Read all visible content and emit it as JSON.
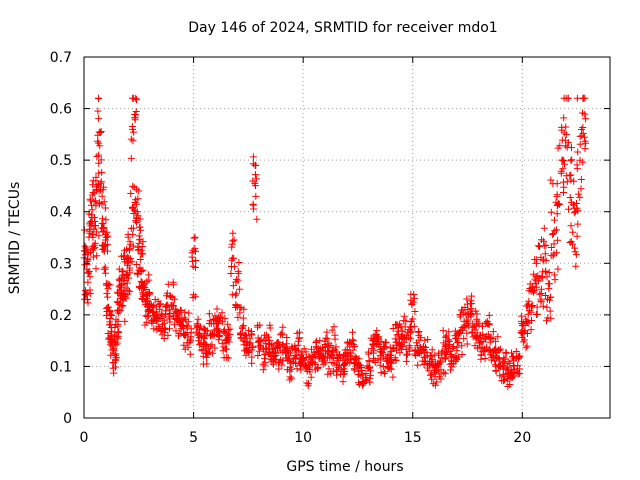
{
  "chart_data": {
    "type": "scatter",
    "title": "Day 146 of 2024, SRMTID for receiver mdo1",
    "xlabel": "GPS time / hours",
    "ylabel": "SRMTID / TECUs",
    "xlim": [
      0,
      24
    ],
    "ylim": [
      0,
      0.7
    ],
    "xticks": [
      0,
      5,
      10,
      15,
      20
    ],
    "yticks": [
      0,
      0.1,
      0.2,
      0.3,
      0.4,
      0.5,
      0.6,
      0.7
    ],
    "ytick_labels": [
      "0",
      "0.1",
      "0.2",
      "0.3",
      "0.4",
      "0.5",
      "0.6",
      "0.7"
    ],
    "grid": true,
    "marker": "+",
    "color": "#ff0000",
    "series": [
      {
        "name": "SRMTID",
        "x": [
          0.0,
          0.1,
          0.2,
          0.3,
          0.4,
          0.5,
          0.6,
          0.7,
          0.8,
          0.9,
          1.0,
          1.1,
          1.2,
          1.3,
          1.4,
          1.5,
          1.6,
          1.7,
          1.8,
          1.9,
          2.0,
          2.1,
          2.2,
          2.3,
          2.4,
          2.5,
          2.6,
          2.7,
          2.8,
          2.9,
          3.0,
          3.2,
          3.4,
          3.6,
          3.8,
          4.0,
          4.2,
          4.4,
          4.6,
          4.8,
          5.0,
          5.2,
          5.4,
          5.6,
          5.8,
          6.0,
          6.2,
          6.4,
          6.6,
          6.8,
          7.0,
          7.2,
          7.4,
          7.6,
          7.8,
          8.0,
          8.2,
          8.4,
          8.6,
          8.8,
          9.0,
          9.2,
          9.4,
          9.6,
          9.8,
          10.0,
          10.2,
          10.4,
          10.6,
          10.8,
          11.0,
          11.2,
          11.4,
          11.6,
          11.8,
          12.0,
          12.2,
          12.4,
          12.6,
          12.8,
          13.0,
          13.2,
          13.4,
          13.6,
          13.8,
          14.0,
          14.2,
          14.4,
          14.6,
          14.8,
          15.0,
          15.2,
          15.4,
          15.6,
          15.8,
          16.0,
          16.2,
          16.4,
          16.6,
          16.8,
          17.0,
          17.2,
          17.4,
          17.6,
          17.8,
          18.0,
          18.2,
          18.4,
          18.6,
          18.8,
          19.0,
          19.2,
          19.4,
          19.6,
          19.8,
          20.0,
          20.2,
          20.4,
          20.6,
          20.8,
          21.0,
          21.2,
          21.4,
          21.6,
          21.8,
          22.0,
          22.2,
          22.4,
          22.6,
          22.8
        ],
        "y": [
          0.25,
          0.33,
          0.28,
          0.38,
          0.42,
          0.36,
          0.45,
          0.55,
          0.4,
          0.38,
          0.3,
          0.22,
          0.18,
          0.14,
          0.12,
          0.16,
          0.22,
          0.26,
          0.24,
          0.28,
          0.3,
          0.32,
          0.45,
          0.6,
          0.4,
          0.34,
          0.3,
          0.26,
          0.22,
          0.24,
          0.22,
          0.2,
          0.19,
          0.18,
          0.21,
          0.22,
          0.2,
          0.18,
          0.17,
          0.16,
          0.3,
          0.16,
          0.14,
          0.15,
          0.16,
          0.18,
          0.17,
          0.16,
          0.15,
          0.3,
          0.26,
          0.18,
          0.15,
          0.14,
          0.46,
          0.15,
          0.13,
          0.14,
          0.12,
          0.13,
          0.14,
          0.13,
          0.11,
          0.12,
          0.13,
          0.1,
          0.09,
          0.11,
          0.13,
          0.12,
          0.14,
          0.12,
          0.13,
          0.11,
          0.1,
          0.12,
          0.13,
          0.11,
          0.09,
          0.08,
          0.1,
          0.12,
          0.14,
          0.13,
          0.12,
          0.11,
          0.14,
          0.15,
          0.16,
          0.15,
          0.2,
          0.14,
          0.13,
          0.12,
          0.1,
          0.09,
          0.11,
          0.13,
          0.14,
          0.12,
          0.15,
          0.17,
          0.19,
          0.2,
          0.18,
          0.16,
          0.15,
          0.17,
          0.13,
          0.12,
          0.11,
          0.1,
          0.09,
          0.1,
          0.11,
          0.17,
          0.19,
          0.22,
          0.26,
          0.28,
          0.3,
          0.24,
          0.35,
          0.42,
          0.48,
          0.55,
          0.45,
          0.38,
          0.5,
          0.58
        ],
        "spread": [
          0.04,
          0.05,
          0.08,
          0.08,
          0.08,
          0.09,
          0.12,
          0.15,
          0.1,
          0.08,
          0.07,
          0.05,
          0.05,
          0.04,
          0.04,
          0.05,
          0.06,
          0.06,
          0.06,
          0.07,
          0.08,
          0.1,
          0.15,
          0.1,
          0.08,
          0.08,
          0.07,
          0.06,
          0.06,
          0.06,
          0.06,
          0.05,
          0.05,
          0.05,
          0.06,
          0.06,
          0.05,
          0.05,
          0.05,
          0.05,
          0.08,
          0.05,
          0.05,
          0.05,
          0.05,
          0.05,
          0.05,
          0.05,
          0.05,
          0.08,
          0.07,
          0.05,
          0.05,
          0.05,
          0.08,
          0.05,
          0.05,
          0.05,
          0.04,
          0.04,
          0.05,
          0.05,
          0.04,
          0.04,
          0.05,
          0.04,
          0.04,
          0.04,
          0.05,
          0.04,
          0.05,
          0.04,
          0.05,
          0.04,
          0.04,
          0.04,
          0.05,
          0.04,
          0.04,
          0.03,
          0.04,
          0.05,
          0.05,
          0.05,
          0.05,
          0.04,
          0.05,
          0.05,
          0.05,
          0.05,
          0.05,
          0.05,
          0.05,
          0.04,
          0.04,
          0.04,
          0.04,
          0.05,
          0.05,
          0.04,
          0.05,
          0.05,
          0.05,
          0.05,
          0.05,
          0.05,
          0.05,
          0.05,
          0.04,
          0.04,
          0.04,
          0.04,
          0.03,
          0.04,
          0.04,
          0.05,
          0.06,
          0.08,
          0.1,
          0.1,
          0.12,
          0.08,
          0.12,
          0.14,
          0.15,
          0.15,
          0.15,
          0.15,
          0.15,
          0.12
        ]
      }
    ]
  }
}
